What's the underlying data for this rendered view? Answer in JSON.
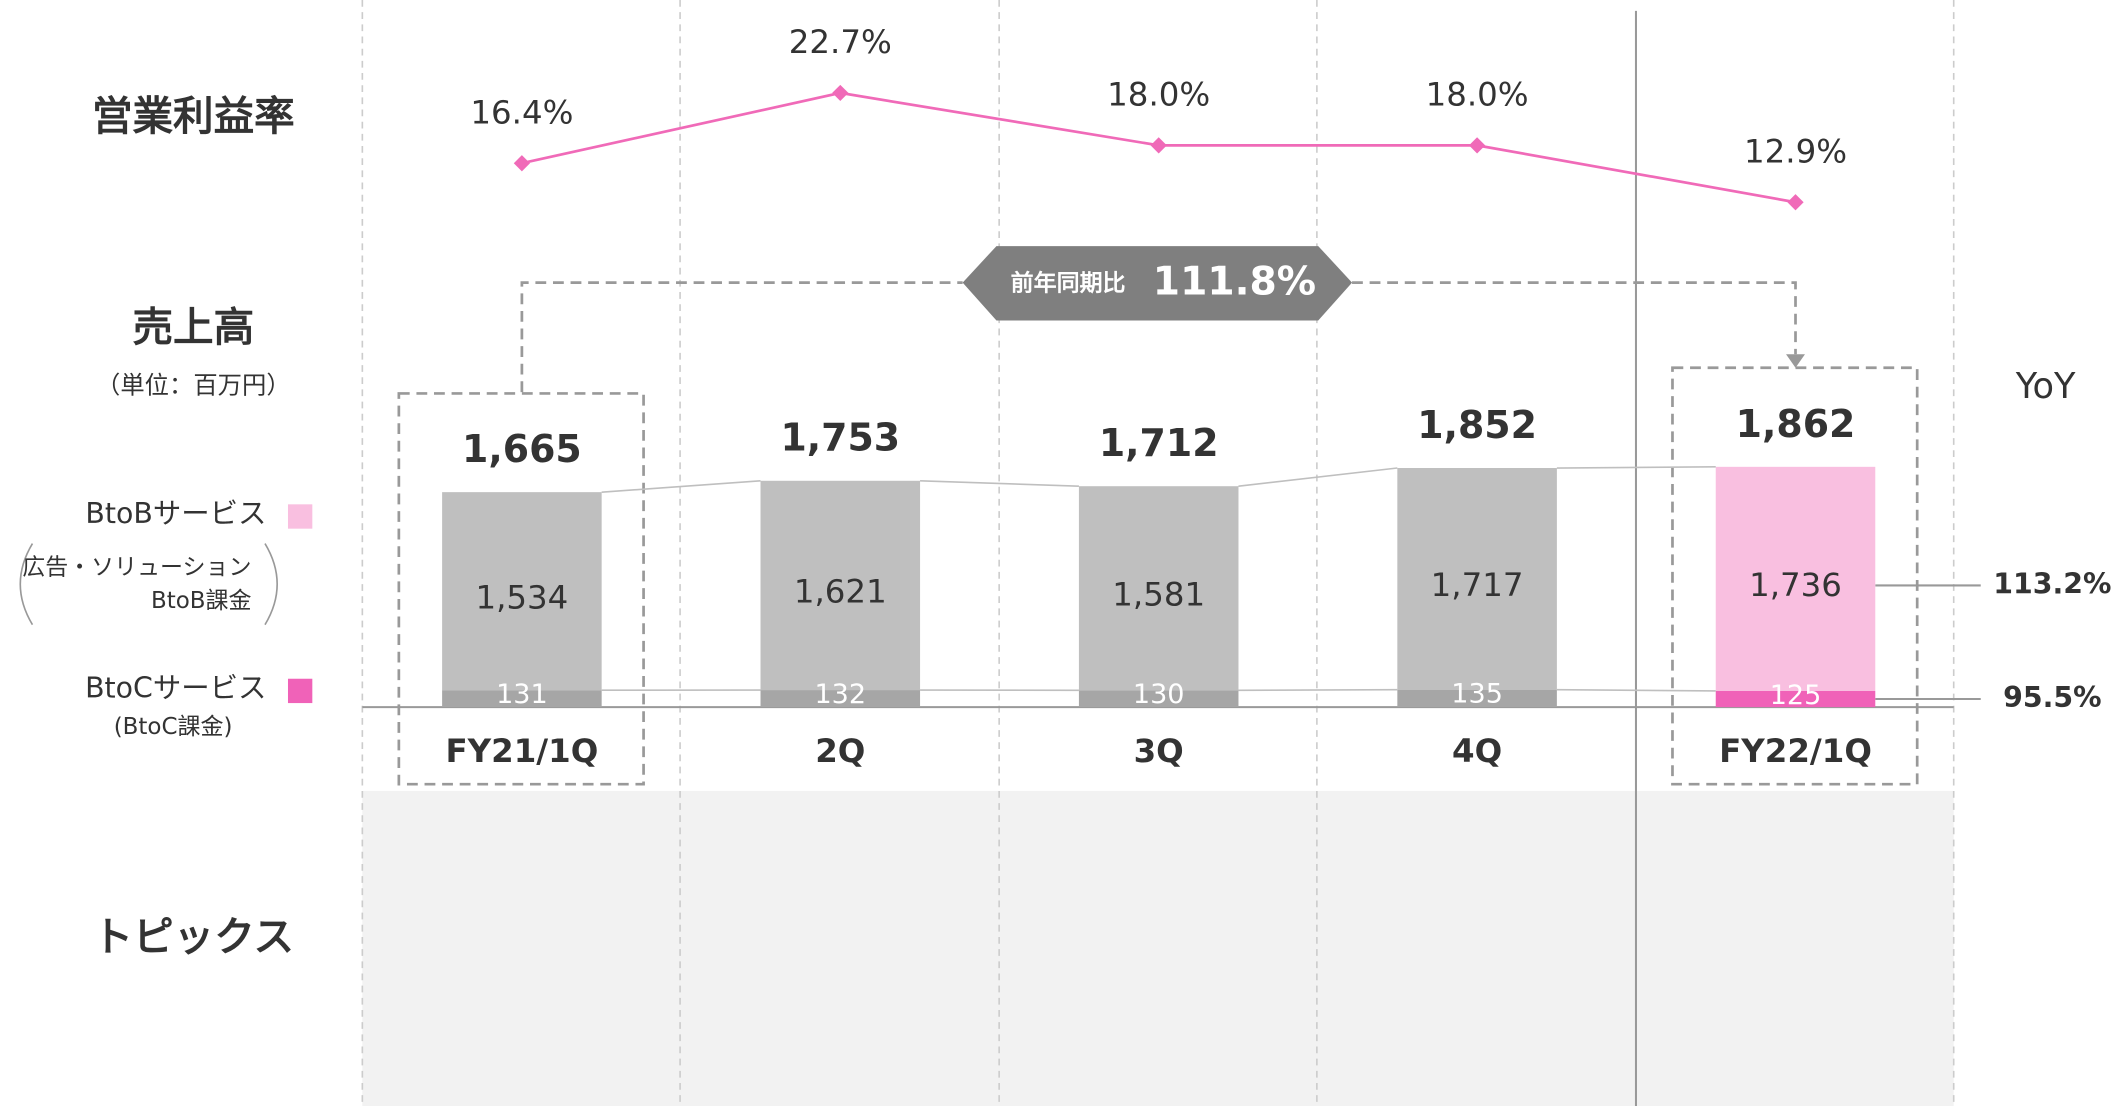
{
  "chart_data": [
    {
      "type": "line",
      "name": "営業利益率",
      "categories": [
        "FY21/1Q",
        "2Q",
        "3Q",
        "4Q",
        "FY22/1Q"
      ],
      "values": [
        16.4,
        22.7,
        18.0,
        18.0,
        12.9
      ],
      "value_labels": [
        "16.4%",
        "22.7%",
        "18.0%",
        "18.0%",
        "12.9%"
      ],
      "color": "#f06ab8",
      "ylim": [
        0,
        30
      ]
    },
    {
      "type": "bar",
      "stacked": true,
      "title": "売上高",
      "subtitle": "（単位：百万円）",
      "categories": [
        "FY21/1Q",
        "2Q",
        "3Q",
        "4Q",
        "FY22/1Q"
      ],
      "series": [
        {
          "name": "BtoBサービス",
          "note": [
            "広告・ソリューション",
            "BtoB課金"
          ],
          "color": "#f9bfe0",
          "colors": [
            "#bfbfbf",
            "#bfbfbf",
            "#bfbfbf",
            "#bfbfbf",
            "#f9bfe0"
          ],
          "values": [
            1534,
            1621,
            1581,
            1717,
            1736
          ],
          "value_labels": [
            "1,534",
            "1,621",
            "1,581",
            "1,717",
            "1,736"
          ],
          "yoy": "113.2%"
        },
        {
          "name": "BtoCサービス",
          "note": [
            "(BtoC課金)"
          ],
          "color": "#f062b8",
          "colors": [
            "#a6a6a6",
            "#a6a6a6",
            "#a6a6a6",
            "#a6a6a6",
            "#f062b8"
          ],
          "values": [
            131,
            132,
            130,
            135,
            125
          ],
          "yoy": "95.5%"
        }
      ],
      "totals": [
        1665,
        1753,
        1712,
        1852,
        1862
      ],
      "total_labels": [
        "1,665",
        "1,753",
        "1,712",
        "1,852",
        "1,862"
      ],
      "ylim": [
        0,
        2000
      ],
      "comparison": {
        "label": "前年同期比",
        "value": "111.8%"
      },
      "yoy_title": "YoY"
    }
  ],
  "topics": {
    "title": "トピックス"
  }
}
